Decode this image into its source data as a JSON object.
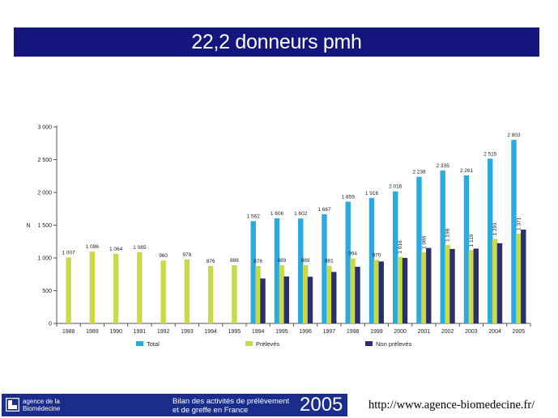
{
  "slide": {
    "title": "22,2 donneurs pmh"
  },
  "chart_data": {
    "type": "bar",
    "ylabel": "N",
    "ylim": [
      0,
      3000
    ],
    "yticks": [
      0,
      500,
      1000,
      1500,
      2000,
      2500,
      3000
    ],
    "ytick_labels": [
      "0",
      "500",
      "1 000",
      "1 500",
      "2 000",
      "2 500",
      "3 000"
    ],
    "grid": false,
    "legend_position": "bottom",
    "categories": [
      "1988",
      "1989",
      "1990",
      "1991",
      "1992",
      "1993",
      "1994",
      "1995",
      "1994",
      "1995",
      "1996",
      "1997",
      "1998",
      "1999",
      "2000",
      "2001",
      "2002",
      "2003",
      "2004",
      "2005"
    ],
    "series": [
      {
        "name": "Total",
        "color": "#29abe2",
        "values": [
          null,
          null,
          null,
          null,
          null,
          null,
          null,
          null,
          1562,
          1606,
          1602,
          1667,
          1859,
          1916,
          2016,
          2238,
          2335,
          2261,
          2515,
          2803
        ],
        "labels": [
          "",
          "",
          "",
          "",
          "",
          "",
          "",
          "",
          "1 562",
          "1 606",
          "1 602",
          "1 667",
          "1 859",
          "1 916",
          "2 016",
          "2 238",
          "2 335",
          "2 261",
          "2 515",
          "2 803"
        ]
      },
      {
        "name": "Prélevés",
        "color": "#c9d94a",
        "values": [
          1007,
          1096,
          1064,
          1085,
          960,
          978,
          876,
          889,
          876,
          889,
          889,
          881,
          994,
          970,
          1016,
          1086,
          1198,
          1119,
          1291,
          1371
        ],
        "labels": [
          "1 007",
          "1 096",
          "1 064",
          "1 085",
          "960",
          "978",
          "876",
          "889",
          "876",
          "889",
          "889",
          "881",
          "994",
          "970",
          "1 016",
          "1 086",
          "1 198",
          "1 119",
          "1 291",
          "1 371"
        ]
      },
      {
        "name": "Non prélevés",
        "color": "#2b2f6e",
        "values": [
          null,
          null,
          null,
          null,
          null,
          null,
          null,
          null,
          686,
          717,
          713,
          786,
          865,
          946,
          1000,
          1152,
          1137,
          1142,
          1224,
          1432
        ]
      }
    ]
  },
  "footer": {
    "logo_line1": "agence de la",
    "logo_line2": "Biomédecine",
    "subtitle_line1": "Bilan des activités de prélèvement",
    "subtitle_line2": "et de greffe en France",
    "year": "2005",
    "url": "http://www.agence-biomedecine.fr/"
  }
}
